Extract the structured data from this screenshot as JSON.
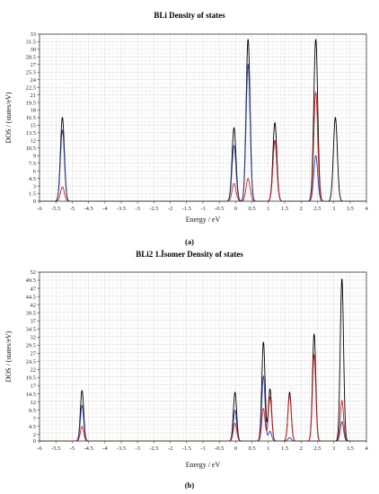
{
  "figure": {
    "caption_a": "(a)",
    "caption_b": "(b)"
  },
  "chart_data": [
    {
      "type": "line",
      "title": "BLi   Density of states",
      "xlabel": "Energy / eV",
      "ylabel": "DOS / (states/eV)",
      "xlim": [
        -6,
        4
      ],
      "ylim": [
        0,
        33
      ],
      "xticks": [
        "-6",
        "-5.5",
        "-5",
        "-4.5",
        "-4",
        "-3.5",
        "-3",
        "-2.5",
        "-2",
        "-1.5",
        "-1",
        "-0.5",
        "0",
        "0.5",
        "1",
        "1.5",
        "2",
        "2.5",
        "3",
        "3.5",
        "4"
      ],
      "yticks": [
        "0",
        "1.5",
        "3",
        "4.5",
        "6",
        "7.5",
        "9",
        "10.5",
        "12",
        "13.5",
        "15",
        "16.5",
        "18",
        "19.5",
        "21",
        "22.5",
        "24",
        "25.5",
        "27",
        "28.5",
        "30",
        "31.5",
        "33"
      ],
      "grid": true,
      "series": [
        {
          "color": "#000000",
          "width": 0.06,
          "peaks": [
            [
              -5.3,
              16.5
            ],
            [
              -0.05,
              14.5
            ],
            [
              0.38,
              32
            ],
            [
              1.2,
              15.5
            ],
            [
              2.45,
              32
            ],
            [
              3.05,
              16.5
            ]
          ]
        },
        {
          "color": "#2c3f99",
          "width": 0.06,
          "peaks": [
            [
              -5.3,
              14
            ],
            [
              -0.05,
              11
            ],
            [
              0.38,
              27
            ],
            [
              1.2,
              12
            ],
            [
              2.45,
              9
            ]
          ]
        },
        {
          "color": "#cc2020",
          "width": 0.06,
          "peaks": [
            [
              -5.3,
              2.8
            ],
            [
              -0.05,
              3.5
            ],
            [
              0.38,
              4.5
            ],
            [
              1.2,
              12
            ],
            [
              2.45,
              21.5
            ]
          ]
        }
      ]
    },
    {
      "type": "line",
      "title": "BLi2   1.İsomer Density of states",
      "xlabel": "Energy / eV",
      "ylabel": "DOS / (states/eV)",
      "xlim": [
        -6,
        4
      ],
      "ylim": [
        0,
        52
      ],
      "xticks": [
        "-6",
        "-5.5",
        "-5",
        "-4.5",
        "-4",
        "-3.5",
        "-3",
        "-2.5",
        "-2",
        "-1.5",
        "-1",
        "-0.5",
        "0",
        "0.5",
        "1",
        "1.5",
        "2",
        "2.5",
        "3",
        "3.5",
        "4"
      ],
      "yticks": [
        "0",
        "2",
        "4.5",
        "7",
        "9.5",
        "12",
        "14.5",
        "17",
        "19.5",
        "22",
        "24.5",
        "27",
        "29.5",
        "32",
        "34.5",
        "37",
        "39.5",
        "42",
        "44.5",
        "47",
        "49.5",
        "52"
      ],
      "grid": true,
      "series": [
        {
          "color": "#000000",
          "width": 0.05,
          "peaks": [
            [
              -4.7,
              15.5
            ],
            [
              -0.02,
              15
            ],
            [
              0.85,
              30.5
            ],
            [
              1.05,
              16
            ],
            [
              1.65,
              15
            ],
            [
              2.4,
              33
            ],
            [
              3.25,
              50
            ]
          ]
        },
        {
          "color": "#2c3f99",
          "width": 0.05,
          "peaks": [
            [
              -4.7,
              11
            ],
            [
              -0.02,
              9.5
            ],
            [
              0.85,
              20
            ],
            [
              1.05,
              3
            ],
            [
              1.65,
              1
            ],
            [
              3.25,
              6
            ]
          ]
        },
        {
          "color": "#cc2020",
          "width": 0.05,
          "peaks": [
            [
              -4.7,
              4.5
            ],
            [
              -0.02,
              5.5
            ],
            [
              0.85,
              10
            ],
            [
              1.05,
              13.5
            ],
            [
              1.65,
              14
            ],
            [
              2.4,
              26.5
            ],
            [
              3.25,
              12.5
            ]
          ]
        }
      ]
    }
  ]
}
